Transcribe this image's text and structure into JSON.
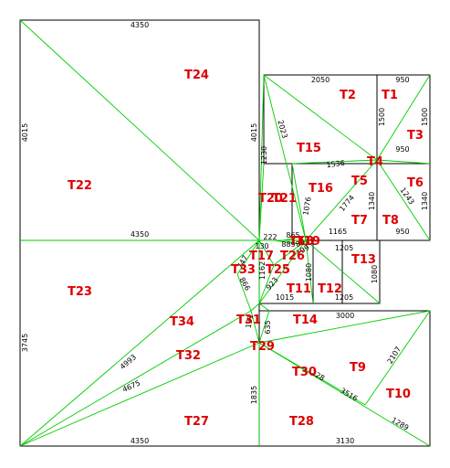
{
  "colors": {
    "outline": "#000000",
    "triangulation": "#00cc00",
    "triangle_label": "#dd0000",
    "dimension_text": "#000000",
    "background": "#ffffff"
  },
  "dimensions": {
    "big_top": "4350",
    "big_left": "4015",
    "big_right": "4015",
    "big_mid": "4350",
    "top_right_top_a": "2050",
    "top_right_top_b": "950",
    "top_right_right": "1500",
    "top_right_inner_v": "1500",
    "t3_bottom": "950",
    "diag_2023": "2023",
    "diag_1536": "1536",
    "left_v_1230": "1230",
    "right_box_v": "1340",
    "right_box_inner_v": "1340",
    "diag_1243": "1243",
    "diag_1774": "1774",
    "diag_1076": "1076",
    "bottom_1165": "1165",
    "bottom_950": "950",
    "small_222": "222",
    "small_130": "130",
    "small_865": "865",
    "small_889": "889",
    "small_199": "199",
    "small_80": "80",
    "small_1162": "1162",
    "small_923": "923",
    "small_747": "747",
    "small_866": "866",
    "mid_1205_top": "1205",
    "mid_1080_v": "1080",
    "mid_1080_right": "1080",
    "mid_1015": "1015",
    "mid_1205_bottom": "1205",
    "low_3745": "3745",
    "low_4993": "4993",
    "low_4675": "4675",
    "low_1835": "1835",
    "low_4350": "4350",
    "low_3130": "3130",
    "low_3000": "3000",
    "low_635": "635",
    "low_2107": "2107",
    "low_3516": "3516",
    "low_1289": "1289",
    "low_228": "228",
    "low_131": "131"
  },
  "triangles": {
    "T1": "T1",
    "T2": "T2",
    "T3": "T3",
    "T4": "T4",
    "T5": "T5",
    "T6": "T6",
    "T7": "T7",
    "T8": "T8",
    "T9": "T9",
    "T10": "T10",
    "T11": "T11",
    "T12": "T12",
    "T13": "T13",
    "T14": "T14",
    "T15": "T15",
    "T16": "T16",
    "T17": "T17",
    "T18": "T18",
    "T19": "T19",
    "T20": "T20",
    "T21": "T21",
    "T22": "T22",
    "T23": "T23",
    "T24": "T24",
    "T25": "T25",
    "T26": "T26",
    "T27": "T27",
    "T28": "T28",
    "T29": "T29",
    "T30": "T30",
    "T31": "T31",
    "T32": "T32",
    "T33": "T33",
    "T34": "T34"
  }
}
